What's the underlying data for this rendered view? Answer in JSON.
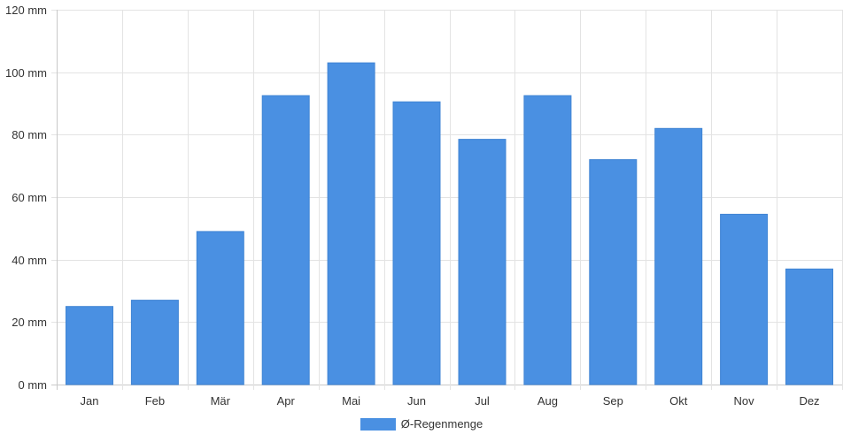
{
  "chart_data": {
    "type": "bar",
    "categories": [
      "Jan",
      "Feb",
      "Mär",
      "Apr",
      "Mai",
      "Jun",
      "Jul",
      "Aug",
      "Sep",
      "Okt",
      "Nov",
      "Dez"
    ],
    "series": [
      {
        "name": "Ø-Regenmenge",
        "values": [
          25,
          27,
          49,
          92.5,
          103,
          90.5,
          78.5,
          92.5,
          72,
          82,
          54.5,
          37
        ],
        "color": "#4a90e2"
      }
    ],
    "y_ticks": [
      "0 mm",
      "20 mm",
      "40 mm",
      "60 mm",
      "80 mm",
      "100 mm",
      "120 mm"
    ],
    "ylim": [
      0,
      120
    ],
    "y_step": 20,
    "grid": true,
    "legend_position": "bottom"
  }
}
